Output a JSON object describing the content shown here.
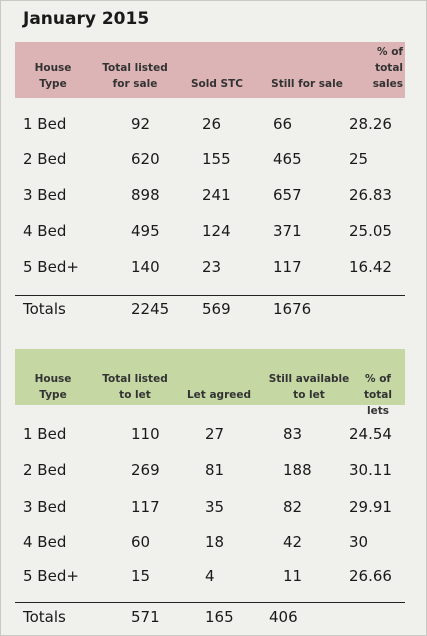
{
  "title": "January 2015",
  "sales": {
    "headers": [
      "House Type",
      "Total listed for sale",
      "Sold STC",
      "Still for sale",
      "% of total sales"
    ],
    "rows": [
      {
        "type": "1 Bed",
        "listed": "92",
        "sold": "26",
        "still": "66",
        "pct": "28.26"
      },
      {
        "type": "2 Bed",
        "listed": "620",
        "sold": "155",
        "still": "465",
        "pct": "25"
      },
      {
        "type": "3 Bed",
        "listed": "898",
        "sold": "241",
        "still": "657",
        "pct": "26.83"
      },
      {
        "type": "4 Bed",
        "listed": "495",
        "sold": "124",
        "still": "371",
        "pct": "25.05"
      },
      {
        "type": "5 Bed+",
        "listed": "140",
        "sold": "23",
        "still": "117",
        "pct": "16.42"
      }
    ],
    "totals": {
      "label": "Totals",
      "listed": "2245",
      "sold": "569",
      "still": "1676"
    }
  },
  "lets": {
    "headers": [
      "House Type",
      "Total listed to let",
      "Let agreed",
      "Still available to let",
      "% of total lets"
    ],
    "rows": [
      {
        "type": "1 Bed",
        "listed": "110",
        "agreed": "27",
        "still": "83",
        "pct": "24.54"
      },
      {
        "type": "2 Bed",
        "listed": "269",
        "agreed": "81",
        "still": "188",
        "pct": "30.11"
      },
      {
        "type": "3 Bed",
        "listed": "117",
        "agreed": "35",
        "still": "82",
        "pct": "29.91"
      },
      {
        "type": "4 Bed",
        "listed": "60",
        "agreed": "18",
        "still": "42",
        "pct": "30"
      },
      {
        "type": "5 Bed+",
        "listed": "15",
        "agreed": "4",
        "still": "11",
        "pct": "26.66"
      }
    ],
    "totals": {
      "label": "Totals",
      "listed": "571",
      "agreed": "165",
      "still": "406"
    }
  },
  "colors": {
    "sales_header": "#ddb4b5",
    "lets_header": "#c5d7a3"
  }
}
